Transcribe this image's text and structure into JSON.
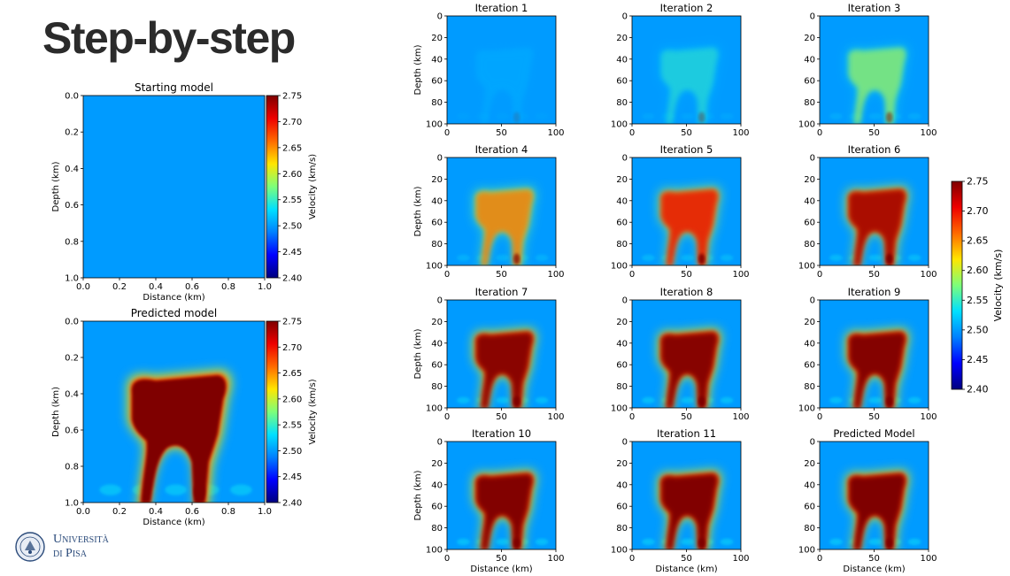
{
  "slide": {
    "title": "Step-by-step"
  },
  "logo": {
    "line1": "Università",
    "line2": "di Pisa",
    "icon": "university-seal-icon"
  },
  "colorbar": {
    "label": "Velocity (km/s)",
    "vmin": 2.4,
    "vmax": 2.75,
    "ticks": [
      "2.40",
      "2.45",
      "2.50",
      "2.55",
      "2.60",
      "2.65",
      "2.70",
      "2.75"
    ],
    "colormap": [
      "#00007f",
      "#0000ff",
      "#0080ff",
      "#00e0ff",
      "#7dff7a",
      "#ffe600",
      "#ff6a00",
      "#ee0000",
      "#7f0000"
    ]
  },
  "chart_data": [
    {
      "type": "heatmap",
      "title": "Starting model",
      "xlabel": "Distance (km)",
      "ylabel": "Depth (km)",
      "xlim": [
        0.0,
        1.0
      ],
      "ylim": [
        1.0,
        0.0
      ],
      "xticks": [
        "0.0",
        "0.2",
        "0.4",
        "0.6",
        "0.8",
        "1.0"
      ],
      "yticks": [
        "0.0",
        "0.2",
        "0.4",
        "0.6",
        "0.8",
        "1.0"
      ],
      "background_velocity": 2.5,
      "anomaly_velocity": 2.5,
      "anomaly_strength": 0.0,
      "colorbar": "Velocity (km/s)"
    },
    {
      "type": "heatmap",
      "title": "Predicted model",
      "xlabel": "Distance (km)",
      "ylabel": "Depth (km)",
      "xlim": [
        0.0,
        1.0
      ],
      "ylim": [
        1.0,
        0.0
      ],
      "xticks": [
        "0.0",
        "0.2",
        "0.4",
        "0.6",
        "0.8",
        "1.0"
      ],
      "yticks": [
        "0.0",
        "0.2",
        "0.4",
        "0.6",
        "0.8",
        "1.0"
      ],
      "background_velocity": 2.5,
      "anomaly_velocity": 2.75,
      "anomaly_strength": 1.0,
      "colorbar": "Velocity (km/s)"
    },
    {
      "type": "heatmap",
      "title": "Iteration 1",
      "ylabel": "Depth (km)",
      "xlabel": "",
      "xticks": [
        "0",
        "50",
        "100"
      ],
      "yticks": [
        "0",
        "20",
        "40",
        "60",
        "80",
        "100"
      ],
      "anomaly_velocity": 2.52,
      "anomaly_strength": 0.12
    },
    {
      "type": "heatmap",
      "title": "Iteration 2",
      "ylabel": "",
      "xlabel": "",
      "xticks": [
        "0",
        "50",
        "100"
      ],
      "yticks": [
        "0",
        "20",
        "40",
        "60",
        "80",
        "100"
      ],
      "anomaly_velocity": 2.56,
      "anomaly_strength": 0.25
    },
    {
      "type": "heatmap",
      "title": "Iteration 3",
      "ylabel": "",
      "xlabel": "",
      "xticks": [
        "0",
        "50",
        "100"
      ],
      "yticks": [
        "0",
        "20",
        "40",
        "60",
        "80",
        "100"
      ],
      "anomaly_velocity": 2.6,
      "anomaly_strength": 0.38
    },
    {
      "type": "heatmap",
      "title": "Iteration 4",
      "ylabel": "Depth (km)",
      "xlabel": "",
      "xticks": [
        "0",
        "50",
        "100"
      ],
      "yticks": [
        "0",
        "20",
        "40",
        "60",
        "80",
        "100"
      ],
      "anomaly_velocity": 2.67,
      "anomaly_strength": 0.55
    },
    {
      "type": "heatmap",
      "title": "Iteration 5",
      "ylabel": "",
      "xlabel": "",
      "xticks": [
        "0",
        "50",
        "100"
      ],
      "yticks": [
        "0",
        "20",
        "40",
        "60",
        "80",
        "100"
      ],
      "anomaly_velocity": 2.71,
      "anomaly_strength": 0.68
    },
    {
      "type": "heatmap",
      "title": "Iteration 6",
      "ylabel": "",
      "xlabel": "",
      "xticks": [
        "0",
        "50",
        "100"
      ],
      "yticks": [
        "0",
        "20",
        "40",
        "60",
        "80",
        "100"
      ],
      "anomaly_velocity": 2.74,
      "anomaly_strength": 0.8
    },
    {
      "type": "heatmap",
      "title": "Iteration 7",
      "ylabel": "Depth (km)",
      "xlabel": "",
      "xticks": [
        "0",
        "50",
        "100"
      ],
      "yticks": [
        "0",
        "20",
        "40",
        "60",
        "80",
        "100"
      ],
      "anomaly_velocity": 2.75,
      "anomaly_strength": 0.9
    },
    {
      "type": "heatmap",
      "title": "Iteration 8",
      "ylabel": "",
      "xlabel": "",
      "xticks": [
        "0",
        "50",
        "100"
      ],
      "yticks": [
        "0",
        "20",
        "40",
        "60",
        "80",
        "100"
      ],
      "anomaly_velocity": 2.75,
      "anomaly_strength": 0.93
    },
    {
      "type": "heatmap",
      "title": "Iteration 9",
      "ylabel": "",
      "xlabel": "",
      "xticks": [
        "0",
        "50",
        "100"
      ],
      "yticks": [
        "0",
        "20",
        "40",
        "60",
        "80",
        "100"
      ],
      "anomaly_velocity": 2.75,
      "anomaly_strength": 0.95
    },
    {
      "type": "heatmap",
      "title": "Iteration 10",
      "ylabel": "Depth (km)",
      "xlabel": "Distance (km)",
      "xticks": [
        "0",
        "50",
        "100"
      ],
      "yticks": [
        "0",
        "20",
        "40",
        "60",
        "80",
        "100"
      ],
      "anomaly_velocity": 2.75,
      "anomaly_strength": 0.97
    },
    {
      "type": "heatmap",
      "title": "Iteration 11",
      "ylabel": "",
      "xlabel": "Distance (km)",
      "xticks": [
        "0",
        "50",
        "100"
      ],
      "yticks": [
        "0",
        "20",
        "40",
        "60",
        "80",
        "100"
      ],
      "anomaly_velocity": 2.75,
      "anomaly_strength": 0.98
    },
    {
      "type": "heatmap",
      "title": "Predicted Model",
      "ylabel": "",
      "xlabel": "Distance (km)",
      "xticks": [
        "0",
        "50",
        "100"
      ],
      "yticks": [
        "0",
        "20",
        "40",
        "60",
        "80",
        "100"
      ],
      "anomaly_velocity": 2.75,
      "anomaly_strength": 1.0
    }
  ]
}
